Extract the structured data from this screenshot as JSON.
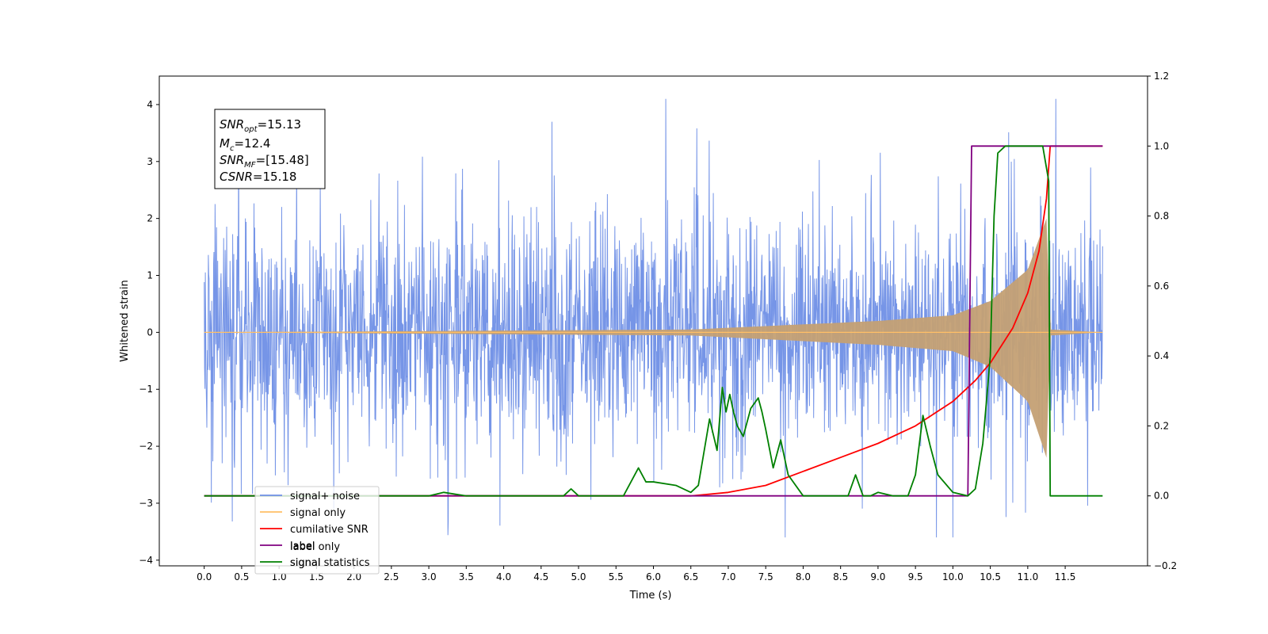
{
  "chart_data": {
    "type": "line",
    "xlabel": "Time (s)",
    "ylabel": "Whitened strain",
    "xlim": [
      -0.6,
      12.6
    ],
    "ylim_left": [
      -4.1,
      4.5
    ],
    "ylim_right": [
      -0.2,
      1.2
    ],
    "x_ticks": [
      "0.0",
      "0.5",
      "1.0",
      "1.5",
      "2.0",
      "2.5",
      "3.0",
      "3.5",
      "4.0",
      "4.5",
      "5.0",
      "5.5",
      "6.0",
      "6.5",
      "7.0",
      "7.5",
      "8.0",
      "8.5",
      "9.0",
      "9.5",
      "10.0",
      "10.5",
      "11.0",
      "11.5"
    ],
    "y_ticks_left": [
      "4",
      "3",
      "2",
      "1",
      "0",
      "−1",
      "−2",
      "−3",
      "−4"
    ],
    "y_ticks_right": [
      "1.2",
      "1.0",
      "0.8",
      "0.6",
      "0.4",
      "0.2",
      "0.0",
      "−0.2"
    ],
    "annotation": {
      "snr_opt_label": "SNR",
      "snr_opt_sub": "opt",
      "snr_opt_value": "=15.13",
      "mc_label": "M",
      "mc_sub": "c",
      "mc_value": "=12.4",
      "snr_mf_label": "SNR",
      "snr_mf_sub": "MF",
      "snr_mf_value": "=[15.48]",
      "csnr_label": "CSNR",
      "csnr_value": "=15.18"
    },
    "legend": [
      {
        "label": "signal+ noise",
        "color": "#6f8fe6"
      },
      {
        "label": "signal only",
        "color": "#ffbf66"
      },
      {
        "label": "cumilative SNR",
        "color": "#ff0000"
      },
      {
        "label": "label",
        "color": "#800080"
      },
      {
        "label": "signal statistics",
        "color": "#008000"
      }
    ],
    "legend_hidden_text": {
      "label_only": "label only",
      "alt": "signal"
    },
    "legend_placement": "lower-left",
    "series": [
      {
        "name": "signal+ noise",
        "axis": "left",
        "color": "#6f8fe6",
        "description": "whitened noise, amplitude ~±3.5, from t=0.0 to 12.0 s"
      },
      {
        "name": "signal only",
        "axis": "left",
        "color": "#d2a06b",
        "chirp_amplitude": [
          [
            0.0,
            0.0
          ],
          [
            6.5,
            0.05
          ],
          [
            9.0,
            0.2
          ],
          [
            10.0,
            0.3
          ],
          [
            10.5,
            0.55
          ],
          [
            11.0,
            1.1
          ],
          [
            11.25,
            2.0
          ],
          [
            11.3,
            0.05
          ],
          [
            12.0,
            0.0
          ]
        ]
      },
      {
        "name": "cumilative SNR",
        "axis": "right",
        "color": "#ff0000",
        "x": [
          0.0,
          6.5,
          7.0,
          7.5,
          8.0,
          8.5,
          9.0,
          9.5,
          10.0,
          10.3,
          10.5,
          10.8,
          11.0,
          11.15,
          11.25,
          11.3,
          12.0
        ],
        "y": [
          0.0,
          0.0,
          0.01,
          0.03,
          0.07,
          0.11,
          0.15,
          0.2,
          0.27,
          0.33,
          0.38,
          0.48,
          0.58,
          0.7,
          0.85,
          1.0,
          1.0
        ]
      },
      {
        "name": "label",
        "axis": "right",
        "color": "#800080",
        "x": [
          0.0,
          10.2,
          10.25,
          11.3,
          11.32,
          12.0
        ],
        "y": [
          0.0,
          0.0,
          1.0,
          1.0,
          1.0,
          1.0
        ]
      },
      {
        "name": "signal statistics",
        "axis": "right",
        "color": "#008000",
        "x": [
          0.0,
          3.0,
          3.2,
          3.5,
          4.0,
          4.8,
          4.9,
          5.0,
          5.6,
          5.8,
          5.9,
          6.0,
          6.3,
          6.5,
          6.6,
          6.75,
          6.85,
          6.92,
          6.97,
          7.02,
          7.07,
          7.12,
          7.2,
          7.3,
          7.4,
          7.45,
          7.5,
          7.6,
          7.7,
          7.8,
          8.0,
          8.6,
          8.7,
          8.8,
          8.9,
          9.0,
          9.2,
          9.4,
          9.5,
          9.6,
          9.7,
          9.8,
          10.0,
          10.2,
          10.3,
          10.4,
          10.5,
          10.55,
          10.6,
          10.7,
          11.0,
          11.2,
          11.28,
          11.3,
          12.0
        ],
        "y": [
          0.0,
          0.0,
          0.01,
          0.0,
          0.0,
          0.0,
          0.02,
          0.0,
          0.0,
          0.08,
          0.04,
          0.04,
          0.03,
          0.01,
          0.03,
          0.22,
          0.13,
          0.31,
          0.24,
          0.29,
          0.24,
          0.2,
          0.17,
          0.25,
          0.28,
          0.24,
          0.19,
          0.08,
          0.16,
          0.06,
          0.0,
          0.0,
          0.06,
          0.0,
          0.0,
          0.01,
          0.0,
          0.0,
          0.06,
          0.23,
          0.14,
          0.06,
          0.01,
          0.0,
          0.02,
          0.15,
          0.4,
          0.8,
          0.98,
          1.0,
          1.0,
          1.0,
          0.9,
          0.0,
          0.0
        ]
      }
    ]
  }
}
